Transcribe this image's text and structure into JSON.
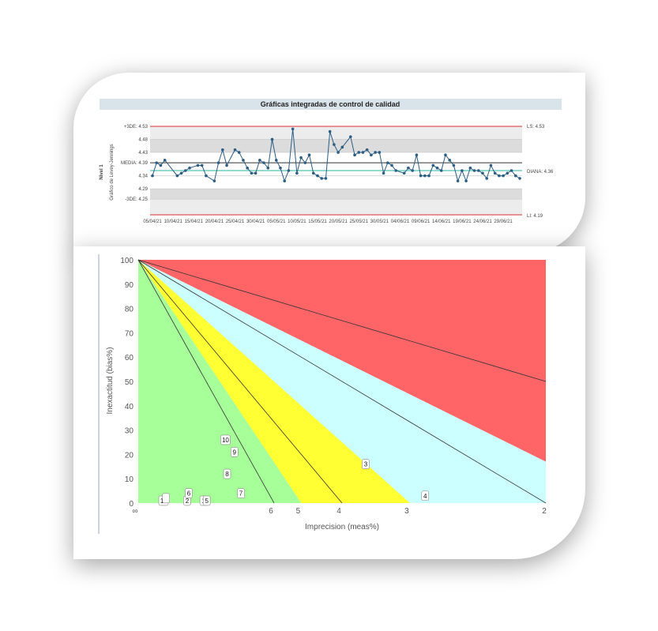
{
  "colors": {
    "header_bg": "#d9e3ea",
    "band_light": "#dcdcdc",
    "limit_red": "#d9302f",
    "mean_dark": "#333333",
    "target_teal": "#2bb5a0",
    "series": "#2c5d83",
    "zone_red": "#ff6566",
    "zone_cyan": "#ccffff",
    "zone_yellow": "#ffff33",
    "zone_green": "#a6ff99"
  },
  "chart_data": [
    {
      "type": "line",
      "title": "Gráficas integradas de control de calidad",
      "ylabel_level": "Nivel 1",
      "ylabel_chart": "Gráfico de Levey-Jennings",
      "right_labels": {
        "ls": "LS: 4.53",
        "diana": "DIANA: 4.36",
        "li": "LI: 4.19"
      },
      "y_ticks": [
        {
          "label": "+3DE: 4.53",
          "value": 4.53
        },
        {
          "label": "4.48",
          "value": 4.48
        },
        {
          "label": "4.43",
          "value": 4.43
        },
        {
          "label": "MEDIA: 4.39",
          "value": 4.39
        },
        {
          "label": "4.34",
          "value": 4.34
        },
        {
          "label": "4.29",
          "value": 4.29
        },
        {
          "label": "-3DE: 4.25",
          "value": 4.25
        }
      ],
      "ylim": [
        4.19,
        4.53
      ],
      "mean": 4.39,
      "target": 4.36,
      "x_tick_labels": [
        "05/04/21",
        "10/04/21",
        "15/04/21",
        "20/04/21",
        "25/04/21",
        "30/04/21",
        "05/05/21",
        "10/05/21",
        "15/05/21",
        "20/05/21",
        "25/05/21",
        "30/05/21",
        "04/06/21",
        "09/06/21",
        "14/06/21",
        "19/06/21",
        "24/06/21",
        "29/06/21"
      ],
      "x_days": [
        0,
        1,
        2,
        3,
        6,
        7,
        8,
        9,
        11,
        12,
        13,
        15,
        16,
        17,
        18,
        20,
        21,
        22,
        23,
        24,
        25,
        26,
        27,
        28,
        29,
        30,
        31,
        32,
        33,
        34,
        35,
        36,
        37,
        38,
        39,
        40,
        41,
        42,
        43,
        44,
        45,
        46,
        48,
        49,
        50,
        51,
        52,
        53,
        54,
        55,
        56,
        57,
        58,
        59,
        61,
        62,
        63,
        64,
        65,
        66,
        67,
        68,
        69,
        70,
        71,
        72,
        73,
        74,
        75,
        76,
        77,
        78,
        79,
        80,
        81,
        82,
        83,
        84,
        85,
        86,
        87,
        88,
        89
      ],
      "values": [
        4.34,
        4.39,
        4.38,
        4.4,
        4.34,
        4.35,
        4.36,
        4.37,
        4.38,
        4.38,
        4.34,
        4.32,
        4.39,
        4.44,
        4.38,
        4.44,
        4.43,
        4.4,
        4.37,
        4.35,
        4.35,
        4.4,
        4.39,
        4.37,
        4.48,
        4.4,
        4.37,
        4.32,
        4.36,
        4.52,
        4.35,
        4.41,
        4.39,
        4.42,
        4.35,
        4.34,
        4.33,
        4.33,
        4.51,
        4.46,
        4.43,
        4.45,
        4.49,
        4.42,
        4.43,
        4.43,
        4.44,
        4.42,
        4.43,
        4.43,
        4.35,
        4.39,
        4.38,
        4.36,
        4.35,
        4.37,
        4.36,
        4.42,
        4.34,
        4.34,
        4.34,
        4.38,
        4.37,
        4.36,
        4.42,
        4.4,
        4.38,
        4.32,
        4.36,
        4.32,
        4.37,
        4.36,
        4.36,
        4.35,
        4.33,
        4.38,
        4.35,
        4.34,
        4.34,
        4.35,
        4.36,
        4.34,
        4.33
      ]
    },
    {
      "type": "area",
      "xlabel": "Imprecision (meas%)",
      "ylabel": "Inexactitud (bias%)",
      "ylim": [
        0,
        100
      ],
      "y_ticks": [
        0,
        10,
        20,
        30,
        40,
        50,
        60,
        70,
        80,
        90,
        100
      ],
      "x_ticks": [
        {
          "label": "∞",
          "value": 0
        },
        {
          "label": "6",
          "value": 0.1667
        },
        {
          "label": "5",
          "value": 0.2
        },
        {
          "label": "4",
          "value": 0.25
        },
        {
          "label": "3",
          "value": 0.3333
        },
        {
          "label": "2",
          "value": 0.5
        }
      ],
      "points": [
        {
          "label": "1",
          "x": 0.08,
          "y": 1
        },
        {
          "label": "2",
          "x": 0.06,
          "y": 1
        },
        {
          "label": "3",
          "x": 0.279,
          "y": 16
        },
        {
          "label": "4",
          "x": 0.352,
          "y": 3
        },
        {
          "label": "5",
          "x": 0.084,
          "y": 1
        },
        {
          "label": "6",
          "x": 0.062,
          "y": 4
        },
        {
          "label": "7",
          "x": 0.126,
          "y": 4
        },
        {
          "label": "8",
          "x": 0.109,
          "y": 12
        },
        {
          "label": "9",
          "x": 0.118,
          "y": 21
        },
        {
          "label": "10",
          "x": 0.107,
          "y": 26
        },
        {
          "label": "11",
          "x": 0.031,
          "y": 1
        },
        {
          "label": "",
          "x": 0.034,
          "y": 2
        }
      ]
    }
  ]
}
